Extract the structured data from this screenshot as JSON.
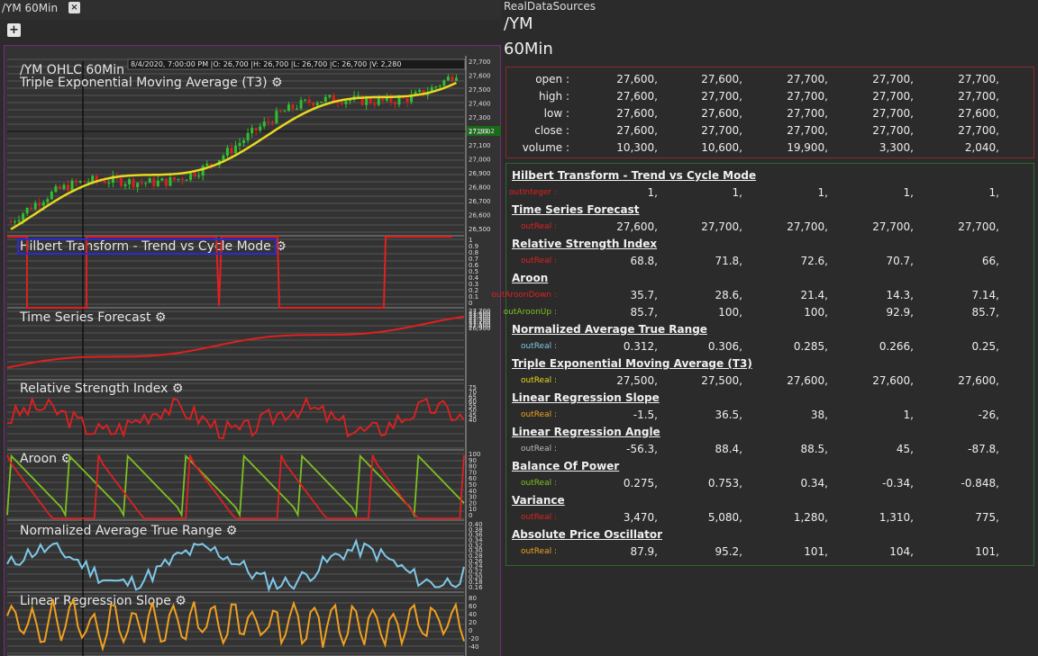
{
  "tab": {
    "title": "/YM 60Min",
    "close": "×"
  },
  "add_button": "+",
  "chart": {
    "title": "/YM OHLC 60Min",
    "header_info": "8/4/2020, 7:00:00 PM   |O: 26,700   |H: 26,700   |L: 26,700   |C: 26,700   |V: 2,280",
    "crosshair_price": "27193.2",
    "price_ticks": [
      "27,700",
      "27,600",
      "27,500",
      "27,400",
      "27,300",
      "27,200",
      "27,100",
      "27,000",
      "26,900",
      "26,800",
      "26,700",
      "26,600",
      "26,500"
    ],
    "panels": [
      {
        "name": "Triple Exponential Moving Average (T3)",
        "gear": "⚙"
      },
      {
        "name": "Hilbert Transform - Trend vs Cycle Mode",
        "gear": "⚙"
      },
      {
        "name": "Time Series Forecast",
        "gear": "⚙"
      },
      {
        "name": "Relative Strength Index",
        "gear": "⚙"
      },
      {
        "name": "Aroon",
        "gear": "⚙"
      },
      {
        "name": "Normalized Average True Range",
        "gear": "⚙"
      },
      {
        "name": "Linear Regression Slope",
        "gear": "⚙"
      }
    ],
    "ht_ticks": [
      "1",
      "0.9",
      "0.8",
      "0.7",
      "0.6",
      "0.5",
      "0.4",
      "0.3",
      "0.2",
      "0.1",
      "0"
    ],
    "tsf_ticks": [
      "27,700",
      "27,600",
      "27,500",
      "27,400",
      "27,300",
      "27,200",
      "27,100",
      "27,000",
      "26,900"
    ],
    "rsi_ticks": [
      "75",
      "70",
      "65",
      "60",
      "55",
      "50",
      "45",
      "40"
    ],
    "aroon_ticks": [
      "100",
      "90",
      "80",
      "70",
      "60",
      "50",
      "40",
      "30",
      "20",
      "10",
      "0"
    ],
    "natr_ticks": [
      "0.40",
      "0.38",
      "0.36",
      "0.34",
      "0.32",
      "0.30",
      "0.28",
      "0.26",
      "0.24",
      "0.22",
      "0.20",
      "0.18",
      "0.16"
    ],
    "lrs_ticks": [
      "80",
      "60",
      "40",
      "20",
      "0",
      "-20",
      "-40"
    ],
    "colors": {
      "t3": "#e8d820",
      "candle_up": "#2fbf2f",
      "candle_down": "#d82020",
      "red": "#e02020",
      "green": "#7cc020",
      "blue": "#7ec8e8",
      "orange": "#f0a020",
      "hilbert_box": "#2a2ad8"
    }
  },
  "right_panel": {
    "source": "RealDataSources",
    "symbol": "/YM",
    "timeframe": "60Min",
    "ohlc": [
      {
        "key": "open :",
        "values": [
          "27,600,",
          "27,600,",
          "27,700,",
          "27,700,",
          "27,700,",
          "...."
        ]
      },
      {
        "key": "high :",
        "values": [
          "27,600,",
          "27,700,",
          "27,700,",
          "27,700,",
          "27,700,",
          "...."
        ]
      },
      {
        "key": "low :",
        "values": [
          "27,600,",
          "27,600,",
          "27,700,",
          "27,700,",
          "27,600,",
          "...."
        ]
      },
      {
        "key": "close :",
        "values": [
          "27,600,",
          "27,700,",
          "27,700,",
          "27,700,",
          "27,700,",
          "...."
        ]
      },
      {
        "key": "volume :",
        "values": [
          "10,300,",
          "10,600,",
          "19,900,",
          "3,300,",
          "2,040,",
          "...."
        ]
      }
    ],
    "indicators": [
      {
        "name": "Hilbert Transform - Trend vs Cycle Mode",
        "rows": [
          {
            "out": "outInteger :",
            "color": "#e02020",
            "values": [
              "1,",
              "1,",
              "1,",
              "1,",
              "1,",
              "...."
            ]
          }
        ]
      },
      {
        "name": "Time Series Forecast",
        "rows": [
          {
            "out": "outReal :",
            "color": "#e02020",
            "values": [
              "27,600,",
              "27,700,",
              "27,700,",
              "27,700,",
              "27,700,",
              "...."
            ]
          }
        ]
      },
      {
        "name": "Relative Strength Index",
        "rows": [
          {
            "out": "outReal :",
            "color": "#e02020",
            "values": [
              "68.8,",
              "71.8,",
              "72.6,",
              "70.7,",
              "66,",
              "...."
            ]
          }
        ]
      },
      {
        "name": "Aroon",
        "rows": [
          {
            "out": "outAroonDown :",
            "color": "#e02020",
            "values": [
              "35.7,",
              "28.6,",
              "21.4,",
              "14.3,",
              "7.14,",
              "...."
            ]
          },
          {
            "out": "outAroonUp :",
            "color": "#7cc020",
            "values": [
              "85.7,",
              "100,",
              "100,",
              "92.9,",
              "85.7,",
              "...."
            ]
          }
        ]
      },
      {
        "name": "Normalized Average True Range",
        "rows": [
          {
            "out": "outReal :",
            "color": "#7ec8e8",
            "values": [
              "0.312,",
              "0.306,",
              "0.285,",
              "0.266,",
              "0.25,",
              "...."
            ]
          }
        ]
      },
      {
        "name": "Triple Exponential Moving Average (T3)",
        "rows": [
          {
            "out": "outReal :",
            "color": "#e8d820",
            "values": [
              "27,500,",
              "27,500,",
              "27,600,",
              "27,600,",
              "27,600,",
              "...."
            ]
          }
        ]
      },
      {
        "name": "Linear Regression Slope",
        "rows": [
          {
            "out": "outReal :",
            "color": "#f0a020",
            "values": [
              "-1.5,",
              "36.5,",
              "38,",
              "1,",
              "-26,",
              "...."
            ]
          }
        ]
      },
      {
        "name": "Linear Regression Angle",
        "rows": [
          {
            "out": "outReal :",
            "color": "#bbbbbb",
            "values": [
              "-56.3,",
              "88.4,",
              "88.5,",
              "45,",
              "-87.8,",
              "...."
            ]
          }
        ]
      },
      {
        "name": "Balance Of Power",
        "rows": [
          {
            "out": "outReal :",
            "color": "#7cc020",
            "values": [
              "0.275,",
              "0.753,",
              "0.34,",
              "-0.34,",
              "-0.848,",
              "...."
            ]
          }
        ]
      },
      {
        "name": "Variance",
        "rows": [
          {
            "out": "outReal :",
            "color": "#e02020",
            "values": [
              "3,470,",
              "5,080,",
              "1,280,",
              "1,310,",
              "775,",
              "...."
            ]
          }
        ]
      },
      {
        "name": "Absolute Price Oscillator",
        "rows": [
          {
            "out": "outReal :",
            "color": "#f0a020",
            "values": [
              "87.9,",
              "95.2,",
              "101,",
              "104,",
              "101,",
              "...."
            ]
          }
        ]
      }
    ]
  }
}
